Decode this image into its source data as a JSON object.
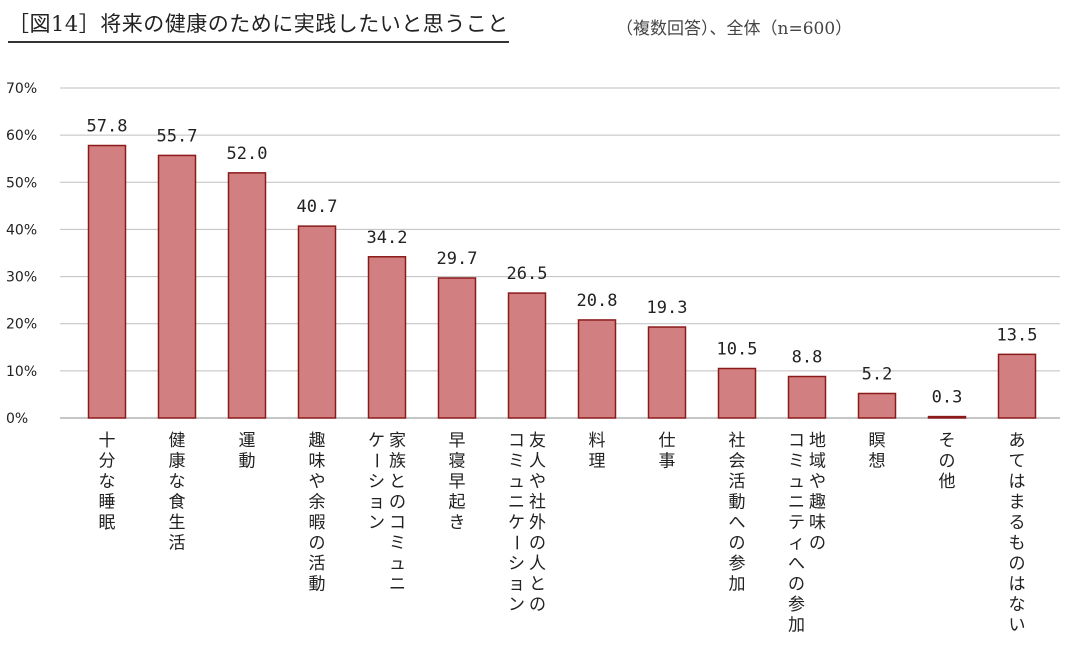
{
  "header": {
    "title": "［図14］将来の健康のために実践したいと思うこと",
    "subtitle": "（複数回答）、全体（n=600）"
  },
  "colors": {
    "bar": "#D17F80",
    "bar_stroke": "#8B1A1A",
    "grid": "#BFBFBF"
  },
  "chart_data": {
    "type": "bar",
    "title": "［図14］将来の健康のために実践したいと思うこと",
    "ylim": [
      0,
      70
    ],
    "yticks": [
      "0%",
      "10%",
      "20%",
      "30%",
      "40%",
      "50%",
      "60%",
      "70%"
    ],
    "grid": true,
    "categories": [
      [
        "十分な睡眠"
      ],
      [
        "健康な食生活"
      ],
      [
        "運動"
      ],
      [
        "趣味や余暇の活動"
      ],
      [
        "家族とのコミュニ",
        "ケーション"
      ],
      [
        "早寝早起き"
      ],
      [
        "友人や社外の人との",
        "コミュニケーション"
      ],
      [
        "料理"
      ],
      [
        "仕事"
      ],
      [
        "社会活動への参加"
      ],
      [
        "地域や趣味の",
        "コミュニティへの参加"
      ],
      [
        "瞑想"
      ],
      [
        "その他"
      ],
      [
        "あてはまるものはない"
      ]
    ],
    "values": [
      57.8,
      55.7,
      52.0,
      40.7,
      34.2,
      29.7,
      26.5,
      20.8,
      19.3,
      10.5,
      8.8,
      5.2,
      0.3,
      13.5
    ],
    "labels": [
      "57.8",
      "55.7",
      "52.0",
      "40.7",
      "34.2",
      "29.7",
      "26.5",
      "20.8",
      "19.3",
      "10.5",
      "8.8",
      "5.2",
      "0.3",
      "13.5"
    ]
  }
}
